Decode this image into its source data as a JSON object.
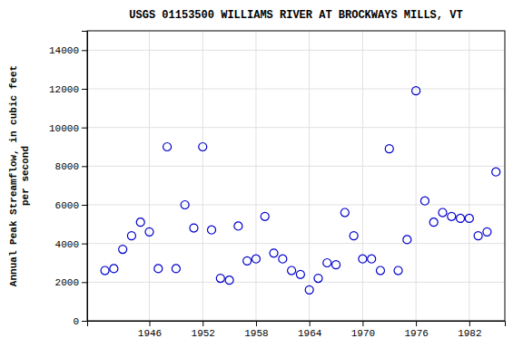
{
  "chart_data": {
    "type": "scatter",
    "title": "USGS 01153500 WILLIAMS RIVER AT BROCKWAYS MILLS, VT",
    "ylabel": "Annual Peak Streamflow, in cubic feet\nper second",
    "x": [
      1941,
      1942,
      1943,
      1944,
      1945,
      1946,
      1947,
      1948,
      1949,
      1950,
      1951,
      1952,
      1953,
      1954,
      1955,
      1956,
      1957,
      1958,
      1959,
      1960,
      1961,
      1962,
      1963,
      1964,
      1965,
      1966,
      1967,
      1968,
      1969,
      1970,
      1971,
      1972,
      1973,
      1974,
      1975,
      1976,
      1977,
      1978,
      1979,
      1980,
      1981,
      1982,
      1983,
      1984,
      1985
    ],
    "values": [
      2600,
      2700,
      3700,
      4400,
      5100,
      4600,
      2700,
      9000,
      2700,
      6000,
      4800,
      9000,
      4700,
      2200,
      2100,
      4900,
      3100,
      3200,
      5400,
      3500,
      3200,
      2600,
      2400,
      1600,
      2200,
      3000,
      2900,
      5600,
      4400,
      3200,
      3200,
      2600,
      8900,
      2600,
      4200,
      11900,
      6200,
      5100,
      5600,
      5400,
      5300,
      5300,
      4400,
      4600,
      7700
    ],
    "xlim": [
      1939,
      1986
    ],
    "ylim": [
      0,
      15000
    ],
    "xticks": [
      1946,
      1952,
      1958,
      1964,
      1970,
      1976,
      1982
    ],
    "yticks": [
      0,
      2000,
      4000,
      6000,
      8000,
      10000,
      12000,
      14000
    ],
    "color": "#0000cc",
    "marker": "circle",
    "grid": true
  }
}
